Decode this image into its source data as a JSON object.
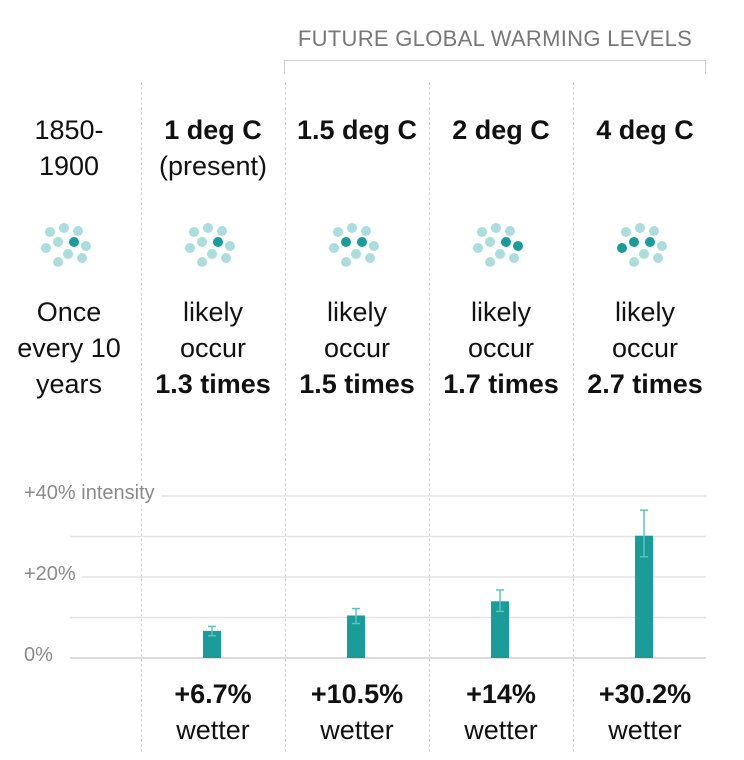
{
  "header": {
    "future_label": "FUTURE GLOBAL WARMING LEVELS"
  },
  "columns": [
    {
      "heading": "1850-",
      "heading_sub": "1900",
      "freq_lines": [
        "Once",
        "every 10",
        "years"
      ],
      "freq_strong": "",
      "result_pct": "",
      "result_word": "",
      "dark_dots": 1
    },
    {
      "heading": "1 deg C",
      "heading_sub": "(present)",
      "freq_lines": [
        "likely",
        "occur"
      ],
      "freq_strong": "1.3 times",
      "result_pct": "+6.7%",
      "result_word": "wetter",
      "dark_dots": 1
    },
    {
      "heading": "1.5 deg C",
      "heading_sub": "",
      "freq_lines": [
        "likely",
        "occur"
      ],
      "freq_strong": "1.5 times",
      "result_pct": "+10.5%",
      "result_word": "wetter",
      "dark_dots": 2
    },
    {
      "heading": "2 deg C",
      "heading_sub": "",
      "freq_lines": [
        "likely",
        "occur"
      ],
      "freq_strong": "1.7 times",
      "result_pct": "+14%",
      "result_word": "wetter",
      "dark_dots": 2
    },
    {
      "heading": "4 deg C",
      "heading_sub": "",
      "freq_lines": [
        "likely",
        "occur"
      ],
      "freq_strong": "2.7 times",
      "result_pct": "+30.2%",
      "result_word": "wetter",
      "dark_dots": 3
    }
  ],
  "colors": {
    "bar": "#1a9c98",
    "dot_dark": "#1a9c98",
    "dot_light": "#a9dedc",
    "grid": "#e3e3e3",
    "errorbar": "#5fc2bf"
  },
  "chart_data": {
    "type": "bar",
    "categories": [
      "1850-1900",
      "1 deg C",
      "1.5 deg C",
      "2 deg C",
      "4 deg C"
    ],
    "values": [
      null,
      6.7,
      10.5,
      14,
      30.2
    ],
    "error_low": [
      null,
      5.5,
      8.5,
      11.5,
      25.0
    ],
    "error_high": [
      null,
      7.8,
      12.2,
      16.8,
      36.5
    ],
    "ylim": [
      0,
      40
    ],
    "yticks": [
      0,
      20,
      40
    ],
    "ytick_labels": [
      "0%",
      "+20%",
      "+40% intensity"
    ],
    "ylabel": "intensity",
    "grid": true
  }
}
